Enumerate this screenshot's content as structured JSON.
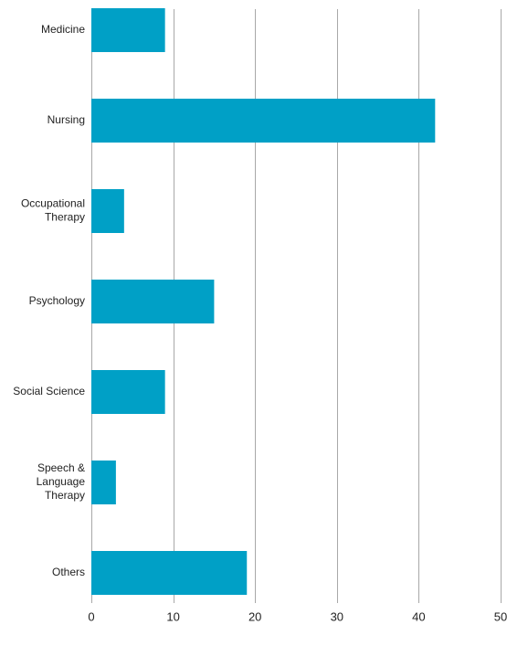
{
  "chart_data": {
    "type": "bar",
    "orientation": "horizontal",
    "categories": [
      "Medicine",
      "Nursing",
      "Occupational Therapy",
      "Psychology",
      "Social Science",
      "Speech & Language Therapy",
      "Others"
    ],
    "category_label_lines": [
      [
        "Medicine"
      ],
      [
        "Nursing"
      ],
      [
        "Occupational",
        "Therapy"
      ],
      [
        "Psychology"
      ],
      [
        "Social Science"
      ],
      [
        "Speech &",
        "Language",
        "Therapy"
      ],
      [
        "Others"
      ]
    ],
    "values": [
      9,
      42,
      4,
      15,
      9,
      3,
      19
    ],
    "xlim": [
      0,
      50
    ],
    "xticks": [
      0,
      10,
      20,
      30,
      40,
      50
    ],
    "title": "",
    "xlabel": "",
    "ylabel": "",
    "grid": "vertical",
    "legend": "none",
    "colors": {
      "bar": "#00a0c6",
      "grid": "#a8a8a8",
      "text": "#222222"
    }
  }
}
